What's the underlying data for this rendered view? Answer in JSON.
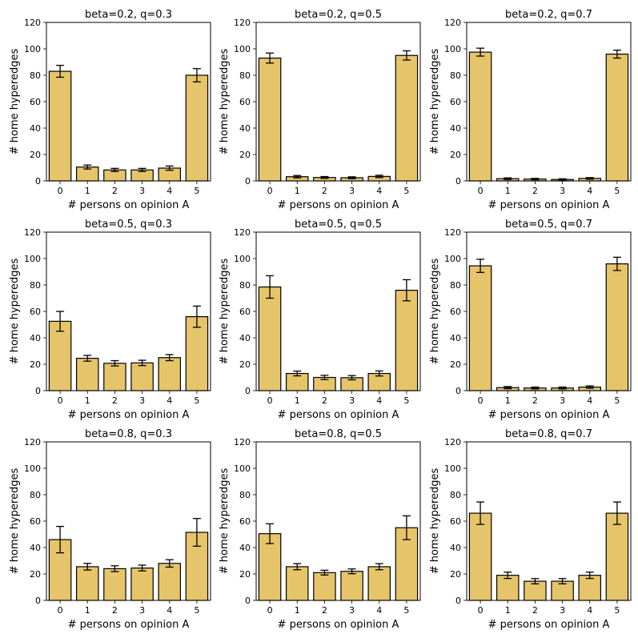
{
  "figure": {
    "facecolor": "#ffffff",
    "bar_color": "#e6c46a",
    "edge_color": "#000000"
  },
  "chart_data": [
    {
      "type": "bar",
      "title": "beta=0.2, q=0.3",
      "xlabel": "# persons on opinion A",
      "ylabel": "# home hyperedges",
      "categories": [
        "0",
        "1",
        "2",
        "3",
        "4",
        "5"
      ],
      "values": [
        83,
        10.5,
        8.3,
        8.3,
        9.7,
        80
      ],
      "errors": [
        4.5,
        1.5,
        1.2,
        1.2,
        1.6,
        5
      ],
      "ylim": [
        0,
        120
      ],
      "yticks": [
        "0",
        "20",
        "40",
        "60",
        "80",
        "100",
        "120"
      ]
    },
    {
      "type": "bar",
      "title": "beta=0.2, q=0.5",
      "xlabel": "# persons on opinion A",
      "ylabel": "# home hyperedges",
      "categories": [
        "0",
        "1",
        "2",
        "3",
        "4",
        "5"
      ],
      "values": [
        93,
        3.2,
        2.6,
        2.4,
        3.4,
        95
      ],
      "errors": [
        3.8,
        0.9,
        0.7,
        0.7,
        0.9,
        3.5
      ],
      "ylim": [
        0,
        120
      ],
      "yticks": [
        "0",
        "20",
        "40",
        "60",
        "80",
        "100",
        "120"
      ]
    },
    {
      "type": "bar",
      "title": "beta=0.2, q=0.7",
      "xlabel": "# persons on opinion A",
      "ylabel": "# home hyperedges",
      "categories": [
        "0",
        "1",
        "2",
        "3",
        "4",
        "5"
      ],
      "values": [
        97.5,
        1.7,
        1.4,
        1.1,
        1.9,
        96
      ],
      "errors": [
        3,
        0.6,
        0.5,
        0.5,
        0.6,
        3
      ],
      "ylim": [
        0,
        120
      ],
      "yticks": [
        "0",
        "20",
        "40",
        "60",
        "80",
        "100",
        "120"
      ]
    },
    {
      "type": "bar",
      "title": "beta=0.5, q=0.3",
      "xlabel": "# persons on opinion A",
      "ylabel": "# home hyperedges",
      "categories": [
        "0",
        "1",
        "2",
        "3",
        "4",
        "5"
      ],
      "values": [
        52.5,
        24.5,
        20.7,
        21,
        25,
        56
      ],
      "errors": [
        7.5,
        2.2,
        2,
        2,
        2.3,
        8
      ],
      "ylim": [
        0,
        120
      ],
      "yticks": [
        "0",
        "20",
        "40",
        "60",
        "80",
        "100",
        "120"
      ]
    },
    {
      "type": "bar",
      "title": "beta=0.5, q=0.5",
      "xlabel": "# persons on opinion A",
      "ylabel": "# home hyperedges",
      "categories": [
        "0",
        "1",
        "2",
        "3",
        "4",
        "5"
      ],
      "values": [
        78.5,
        13,
        10,
        9.8,
        13,
        76
      ],
      "errors": [
        8.5,
        1.8,
        1.6,
        1.6,
        1.9,
        8
      ],
      "ylim": [
        0,
        120
      ],
      "yticks": [
        "0",
        "20",
        "40",
        "60",
        "80",
        "100",
        "120"
      ]
    },
    {
      "type": "bar",
      "title": "beta=0.5, q=0.7",
      "xlabel": "# persons on opinion A",
      "ylabel": "# home hyperedges",
      "categories": [
        "0",
        "1",
        "2",
        "3",
        "4",
        "5"
      ],
      "values": [
        94.5,
        2.3,
        2,
        2,
        2.7,
        96
      ],
      "errors": [
        5,
        0.8,
        0.7,
        0.7,
        0.9,
        5
      ],
      "ylim": [
        0,
        120
      ],
      "yticks": [
        "0",
        "20",
        "40",
        "60",
        "80",
        "100",
        "120"
      ]
    },
    {
      "type": "bar",
      "title": "beta=0.8, q=0.3",
      "xlabel": "# persons on opinion A",
      "ylabel": "# home hyperedges",
      "categories": [
        "0",
        "1",
        "2",
        "3",
        "4",
        "5"
      ],
      "values": [
        46,
        25.5,
        24,
        24.5,
        28,
        51.5
      ],
      "errors": [
        10,
        2.5,
        2.2,
        2.2,
        2.8,
        10.5
      ],
      "ylim": [
        0,
        120
      ],
      "yticks": [
        "0",
        "20",
        "40",
        "60",
        "80",
        "100",
        "120"
      ]
    },
    {
      "type": "bar",
      "title": "beta=0.8, q=0.5",
      "xlabel": "# persons on opinion A",
      "ylabel": "# home hyperedges",
      "categories": [
        "0",
        "1",
        "2",
        "3",
        "4",
        "5"
      ],
      "values": [
        50.5,
        25.5,
        21,
        22,
        25.5,
        55
      ],
      "errors": [
        7.5,
        2.3,
        1.8,
        1.8,
        2.3,
        9
      ],
      "ylim": [
        0,
        120
      ],
      "yticks": [
        "0",
        "20",
        "40",
        "60",
        "80",
        "100",
        "120"
      ]
    },
    {
      "type": "bar",
      "title": "beta=0.8, q=0.7",
      "xlabel": "# persons on opinion A",
      "ylabel": "# home hyperedges",
      "categories": [
        "0",
        "1",
        "2",
        "3",
        "4",
        "5"
      ],
      "values": [
        66,
        19,
        14.5,
        14.5,
        19,
        66
      ],
      "errors": [
        8.5,
        2.4,
        2,
        2,
        2.4,
        8.5
      ],
      "ylim": [
        0,
        120
      ],
      "yticks": [
        "0",
        "20",
        "40",
        "60",
        "80",
        "100",
        "120"
      ]
    }
  ]
}
